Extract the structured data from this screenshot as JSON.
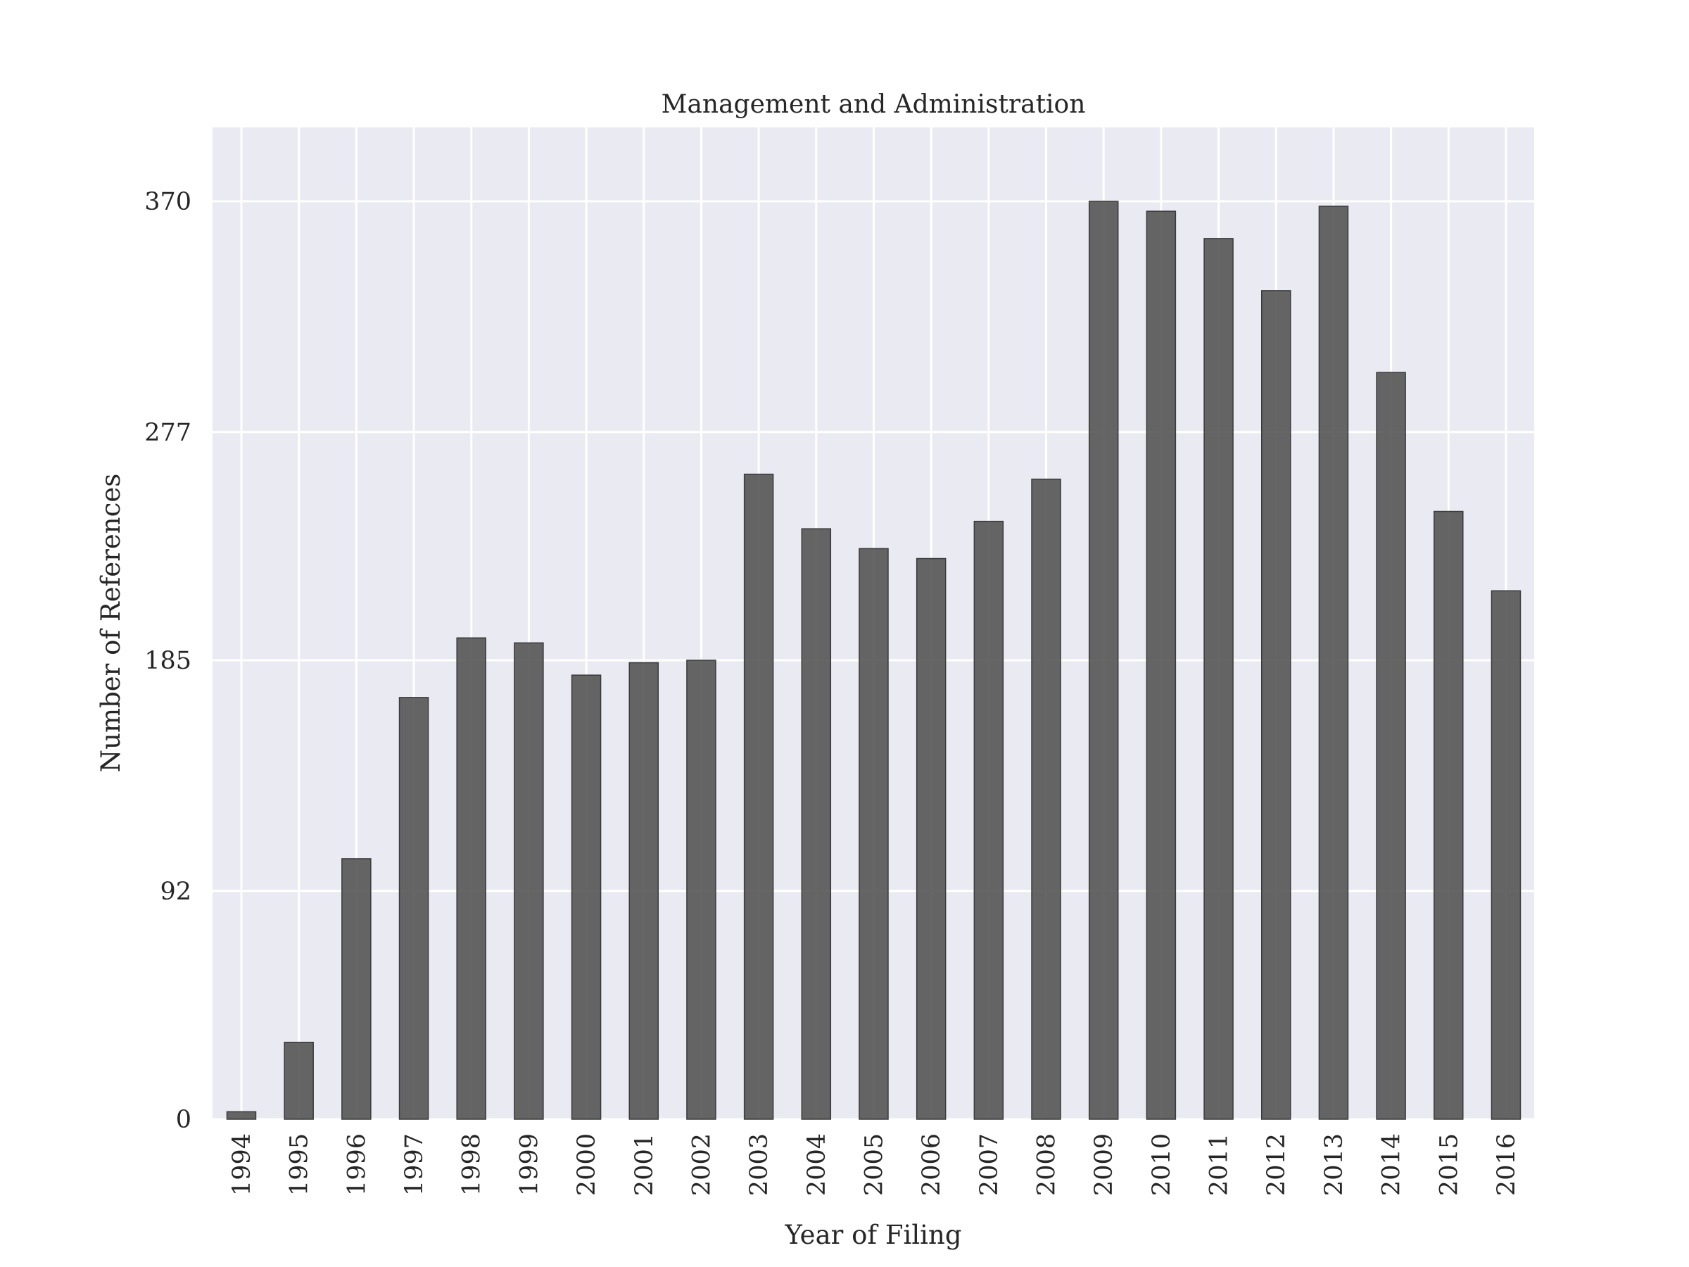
{
  "chart_data": {
    "type": "bar",
    "title": "Management and Administration",
    "xlabel": "Year of Filing",
    "ylabel": "Number of References",
    "categories": [
      "1994",
      "1995",
      "1996",
      "1997",
      "1998",
      "1999",
      "2000",
      "2001",
      "2002",
      "2003",
      "2004",
      "2005",
      "2006",
      "2007",
      "2008",
      "2009",
      "2010",
      "2011",
      "2012",
      "2013",
      "2014",
      "2015",
      "2016"
    ],
    "values": [
      3,
      31,
      105,
      170,
      194,
      192,
      179,
      184,
      185,
      260,
      238,
      230,
      226,
      241,
      258,
      370,
      366,
      355,
      334,
      368,
      301,
      245,
      213
    ],
    "yticks": [
      0,
      92,
      185,
      277,
      370
    ],
    "ylim": [
      0,
      400
    ],
    "grid": true,
    "legend": false,
    "colors": {
      "bar_fill": "#555555",
      "bar_edge": "#3a3a3a",
      "plot_background": "#eaeaf2",
      "grid": "#ffffff"
    }
  }
}
